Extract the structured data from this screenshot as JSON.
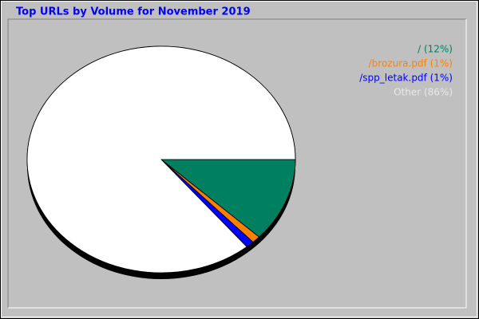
{
  "chart_data": {
    "type": "pie",
    "title": "Top URLs by Volume for November 2019",
    "categories": [
      "/ (12%)",
      "/brozura.pdf (1%)",
      "/spp_letak.pdf (1%)",
      "Other (86%)"
    ],
    "values": [
      12,
      1,
      1,
      86
    ],
    "colors": [
      "#008060",
      "#ff8000",
      "#0000ff",
      "#ffffff"
    ],
    "legend_colors": [
      "#008060",
      "#ff8000",
      "#0000ff",
      "#e8e8e8"
    ],
    "legend": "upper right"
  }
}
